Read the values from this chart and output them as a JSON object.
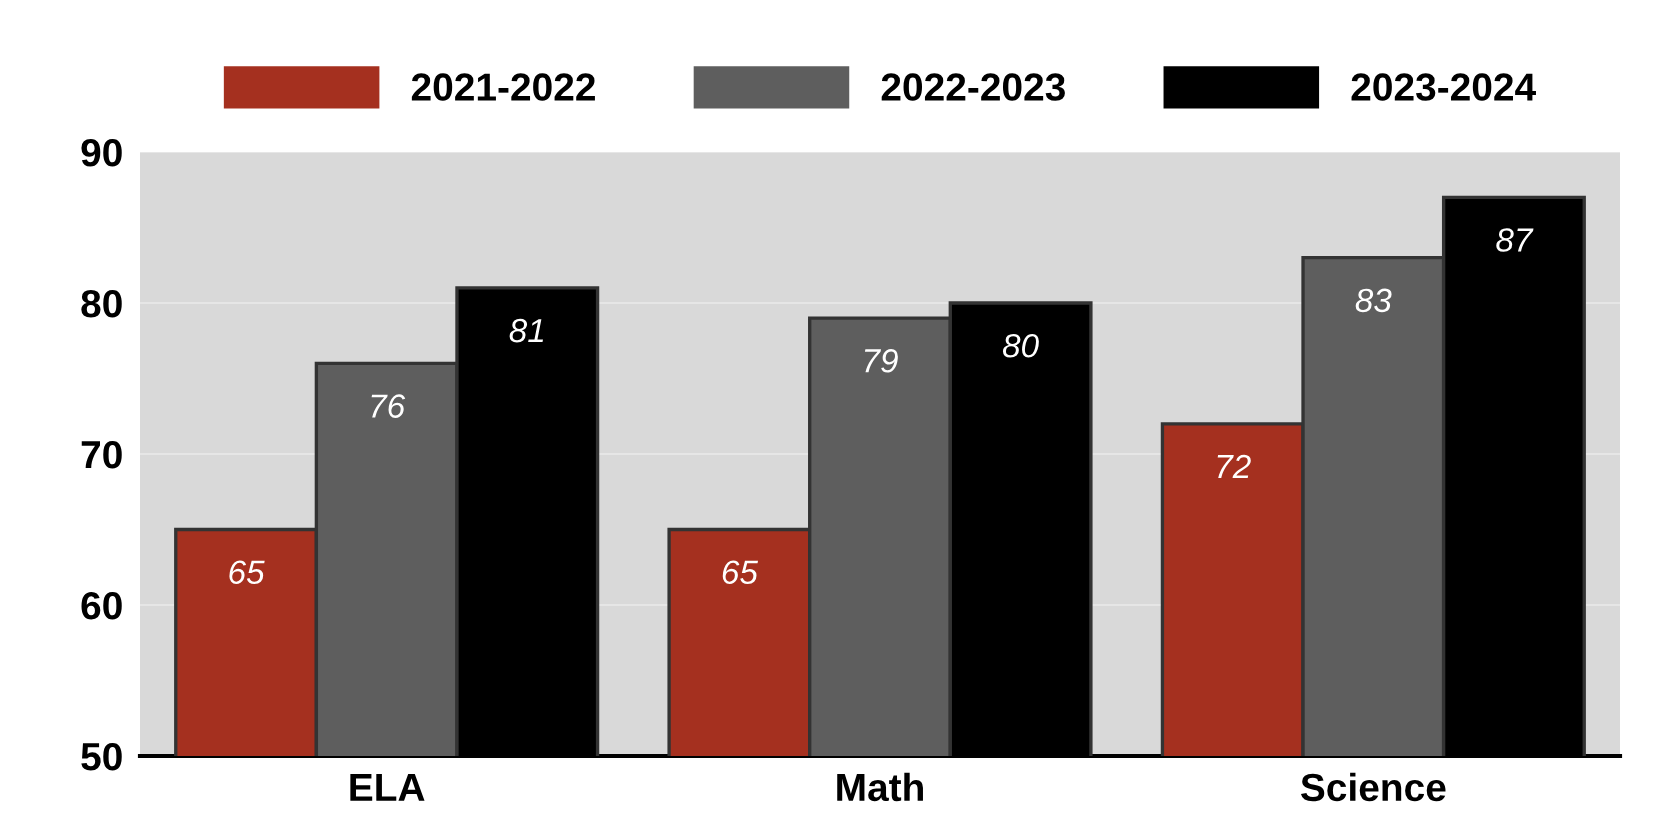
{
  "chart_data": {
    "type": "bar",
    "categories": [
      "ELA",
      "Math",
      "Science"
    ],
    "series": [
      {
        "name": "2021-2022",
        "color": "#a5301f",
        "values": [
          65,
          65,
          72
        ]
      },
      {
        "name": "2022-2023",
        "color": "#5e5e5e",
        "values": [
          76,
          79,
          83
        ]
      },
      {
        "name": "2023-2024",
        "color": "#000000",
        "values": [
          81,
          80,
          87
        ]
      }
    ],
    "ylim": [
      50,
      90
    ],
    "yticks": [
      50,
      60,
      70,
      80,
      90
    ],
    "grid": "y",
    "legend": "top",
    "data_labels": true
  }
}
